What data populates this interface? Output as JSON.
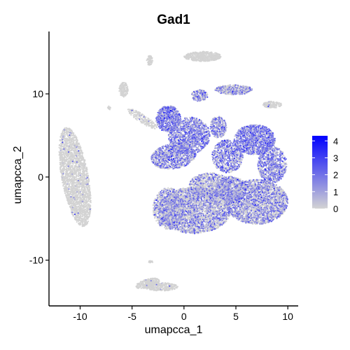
{
  "chart_data": {
    "type": "scatter",
    "title": "Gad1",
    "xlabel": "umapcca_1",
    "ylabel": "umapcca_2",
    "xlim": [
      -13,
      11
    ],
    "ylim": [
      -15.5,
      17.5
    ],
    "x_ticks": [
      -10,
      -5,
      0,
      5,
      10
    ],
    "x_tick_labels": [
      "-10",
      "-5",
      "0",
      "5",
      "10"
    ],
    "y_ticks": [
      -10,
      0,
      10
    ],
    "y_tick_labels": [
      "-10",
      "0",
      "10"
    ],
    "grid": false,
    "legend_position": "right",
    "color_scale": {
      "low": "#d3d3d3",
      "high": "#0000ff",
      "min": 0,
      "max": 4.3,
      "ticks": [
        0,
        1,
        2,
        3,
        4
      ],
      "tick_labels": [
        "0",
        "1",
        "2",
        "3",
        "4"
      ]
    },
    "clusters": [
      {
        "cx": -10.5,
        "cy": 0.0,
        "rx": 1.3,
        "ry": 6.0,
        "rot": 8,
        "expr": 0.03,
        "n": 520
      },
      {
        "cx": 1.8,
        "cy": 14.5,
        "rx": 1.8,
        "ry": 0.6,
        "rot": 0,
        "expr": 0.0,
        "n": 110
      },
      {
        "cx": -3.3,
        "cy": 14.0,
        "rx": 0.3,
        "ry": 0.6,
        "rot": 0,
        "expr": 0.0,
        "n": 14
      },
      {
        "cx": -5.8,
        "cy": 10.5,
        "rx": 0.45,
        "ry": 0.9,
        "rot": 0,
        "expr": 0.0,
        "n": 30
      },
      {
        "cx": -7.2,
        "cy": 8.3,
        "rx": 0.15,
        "ry": 0.25,
        "rot": 0,
        "expr": 0.0,
        "n": 4
      },
      {
        "cx": -4.0,
        "cy": 7.0,
        "rx": 1.8,
        "ry": 0.45,
        "rot": -40,
        "expr": 0.1,
        "n": 45
      },
      {
        "cx": 4.8,
        "cy": 10.5,
        "rx": 1.8,
        "ry": 0.6,
        "rot": 0,
        "expr": 0.55,
        "n": 90
      },
      {
        "cx": 1.5,
        "cy": 9.8,
        "rx": 0.8,
        "ry": 0.7,
        "rot": 0,
        "expr": 0.6,
        "n": 40
      },
      {
        "cx": 8.5,
        "cy": 8.7,
        "rx": 0.9,
        "ry": 0.4,
        "rot": 0,
        "expr": 0.05,
        "n": 35
      },
      {
        "cx": -1.5,
        "cy": 7.0,
        "rx": 1.2,
        "ry": 1.6,
        "rot": 0,
        "expr": 1.2,
        "n": 150
      },
      {
        "cx": 0.5,
        "cy": 5.0,
        "rx": 2.0,
        "ry": 2.2,
        "rot": 0,
        "expr": 1.1,
        "n": 260
      },
      {
        "cx": -1.0,
        "cy": 2.5,
        "rx": 2.2,
        "ry": 1.5,
        "rot": 15,
        "expr": 0.9,
        "n": 230
      },
      {
        "cx": 3.3,
        "cy": 6.0,
        "rx": 0.8,
        "ry": 1.3,
        "rot": 0,
        "expr": 0.9,
        "n": 70
      },
      {
        "cx": 6.8,
        "cy": 4.5,
        "rx": 2.0,
        "ry": 1.8,
        "rot": 0,
        "expr": 1.3,
        "n": 240
      },
      {
        "cx": 8.5,
        "cy": 1.5,
        "rx": 1.4,
        "ry": 2.2,
        "rot": 0,
        "expr": 1.0,
        "n": 170
      },
      {
        "cx": 4.2,
        "cy": 2.5,
        "rx": 1.5,
        "ry": 2.0,
        "rot": 0,
        "expr": 0.9,
        "n": 170
      },
      {
        "cx": 2.5,
        "cy": -1.0,
        "rx": 2.0,
        "ry": 1.5,
        "rot": 0,
        "expr": 0.5,
        "n": 200
      },
      {
        "cx": 1.0,
        "cy": -4.0,
        "rx": 3.5,
        "ry": 2.8,
        "rot": 0,
        "expr": 0.55,
        "n": 720
      },
      {
        "cx": 7.0,
        "cy": -3.0,
        "rx": 3.0,
        "ry": 2.7,
        "rot": 0,
        "expr": 0.65,
        "n": 620
      },
      {
        "cx": 4.5,
        "cy": -1.5,
        "rx": 1.5,
        "ry": 1.6,
        "rot": 0,
        "expr": 0.6,
        "n": 180
      },
      {
        "cx": -1.5,
        "cy": -3.8,
        "rx": 1.5,
        "ry": 2.5,
        "rot": 0,
        "expr": 0.5,
        "n": 200
      },
      {
        "cx": -3.5,
        "cy": -12.8,
        "rx": 1.2,
        "ry": 0.5,
        "rot": 20,
        "expr": 0.02,
        "n": 60
      },
      {
        "cx": -2.2,
        "cy": -13.2,
        "rx": 1.6,
        "ry": 0.5,
        "rot": 0,
        "expr": 0.02,
        "n": 70
      },
      {
        "cx": -3.2,
        "cy": -10.2,
        "rx": 0.2,
        "ry": 0.15,
        "rot": 0,
        "expr": 0.0,
        "n": 4
      }
    ]
  }
}
